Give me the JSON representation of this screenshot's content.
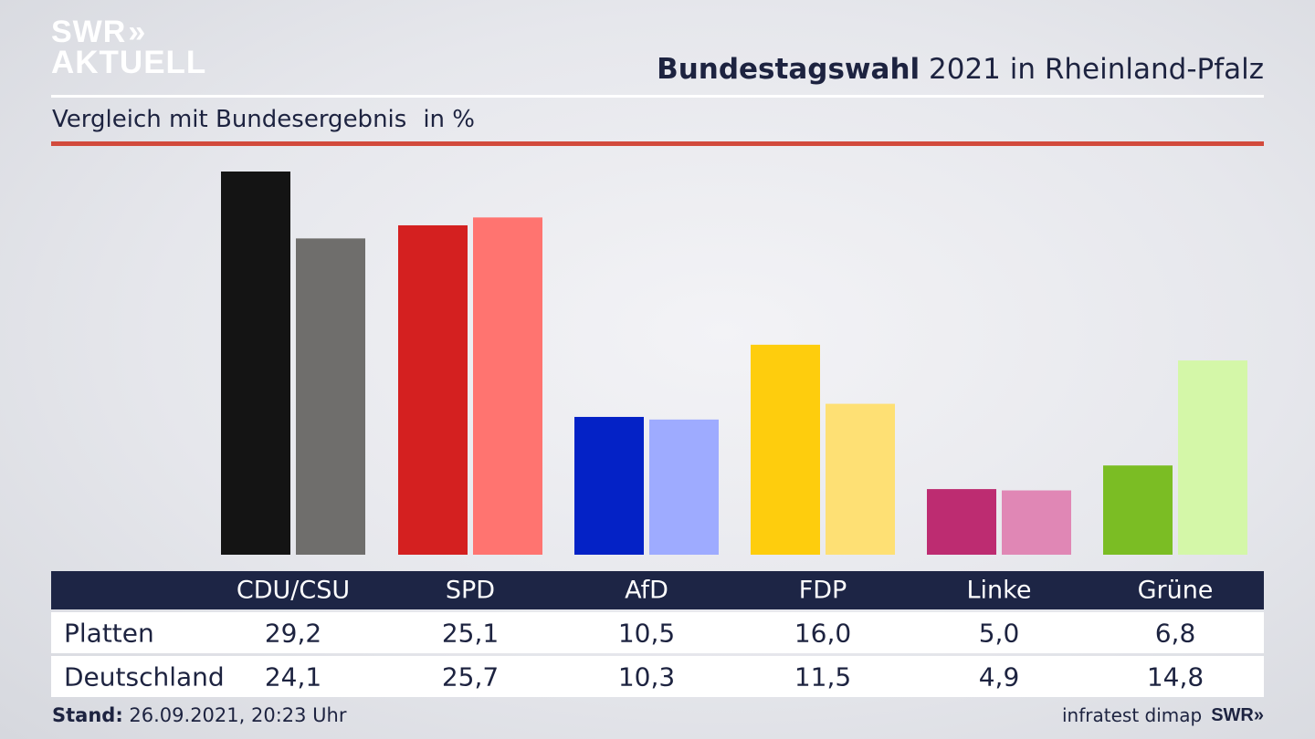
{
  "brand": {
    "logo_line1": "SWR",
    "logo_line2": "AKTUELL",
    "logo_arrows": "»",
    "footer_source": "infratest dimap",
    "footer_logo": "SWR»"
  },
  "header": {
    "title_bold": "Bundestagswahl",
    "title_rest": " 2021 in Rheinland-Pfalz",
    "subtitle": "Vergleich mit Bundesergebnis",
    "unit": "in %"
  },
  "footer": {
    "stand_label": "Stand:",
    "stand_value": " 26.09.2021, 20:23 Uhr"
  },
  "table": {
    "row1_label": "Platten",
    "row2_label": "Deutschland",
    "parties": [
      "CDU/CSU",
      "SPD",
      "AfD",
      "FDP",
      "Linke",
      "Grüne"
    ],
    "row1_values": [
      "29,2",
      "25,1",
      "10,5",
      "16,0",
      "5,0",
      "6,8"
    ],
    "row2_values": [
      "24,1",
      "25,7",
      "10,3",
      "11,5",
      "4,9",
      "14,8"
    ]
  },
  "chart_data": {
    "type": "bar",
    "categories": [
      "CDU/CSU",
      "SPD",
      "AfD",
      "FDP",
      "Linke",
      "Grüne"
    ],
    "series": [
      {
        "name": "Platten",
        "values": [
          29.2,
          25.1,
          10.5,
          16.0,
          5.0,
          6.8
        ],
        "colors": [
          "#141414",
          "#d42020",
          "#0422c6",
          "#fecd0d",
          "#bd2c71",
          "#7bbd24"
        ]
      },
      {
        "name": "Deutschland",
        "values": [
          24.1,
          25.7,
          10.3,
          11.5,
          4.9,
          14.8
        ],
        "colors": [
          "#6f6e6c",
          "#ff7470",
          "#9eabff",
          "#fee074",
          "#e087b5",
          "#d4f7a8"
        ]
      }
    ],
    "ylim": [
      0,
      29.2
    ],
    "grid": false,
    "legend": "none"
  },
  "colors": {
    "navy": "#1d2545",
    "red_rule": "#d24a3c"
  }
}
